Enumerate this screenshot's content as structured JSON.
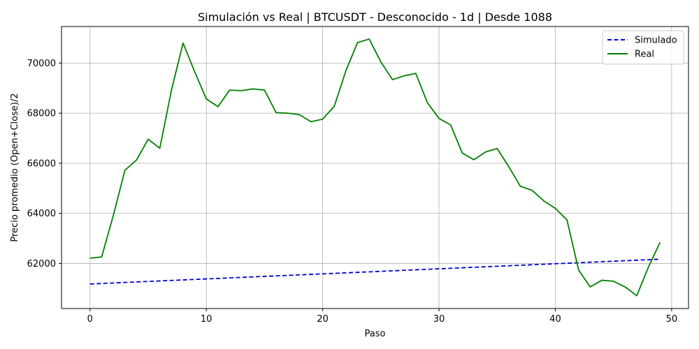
{
  "chart_data": {
    "type": "line",
    "title": "Simulación vs Real | BTCUSDT - Desconocido - 1d | Desde 1088",
    "xlabel": "Paso",
    "ylabel": "Precio promedio (Open+Close)/2",
    "xlim": [
      -2.45,
      51.45
    ],
    "ylim": [
      60200,
      71460
    ],
    "xticks": [
      0,
      10,
      20,
      30,
      40,
      50
    ],
    "yticks": [
      62000,
      64000,
      66000,
      68000,
      70000
    ],
    "grid": true,
    "legend_position": "top-right",
    "series": [
      {
        "name": "Simulado",
        "color": "#0000cc",
        "style": "dashed",
        "x": [
          0,
          49
        ],
        "y": [
          61180,
          62170
        ]
      },
      {
        "name": "Real",
        "color": "#008000",
        "style": "solid",
        "x": [
          0,
          1,
          2,
          3,
          4,
          5,
          6,
          7,
          8,
          9,
          10,
          11,
          12,
          13,
          14,
          15,
          16,
          17,
          18,
          19,
          20,
          21,
          22,
          23,
          24,
          25,
          26,
          27,
          28,
          29,
          30,
          31,
          32,
          33,
          34,
          35,
          36,
          37,
          38,
          39,
          40,
          41,
          42,
          43,
          44,
          45,
          46,
          47,
          48,
          49
        ],
        "y": [
          62210,
          62260,
          63910,
          65720,
          66130,
          66960,
          66600,
          68920,
          70800,
          69650,
          68570,
          68260,
          68920,
          68900,
          68970,
          68920,
          68020,
          68000,
          67940,
          67660,
          67760,
          68280,
          69700,
          70820,
          70960,
          70050,
          69340,
          69490,
          69590,
          68420,
          67790,
          67530,
          66410,
          66140,
          66450,
          66590,
          65860,
          65080,
          64920,
          64500,
          64200,
          63740,
          61740,
          61060,
          61330,
          61290,
          61060,
          60710,
          61850,
          62840
        ]
      }
    ]
  }
}
